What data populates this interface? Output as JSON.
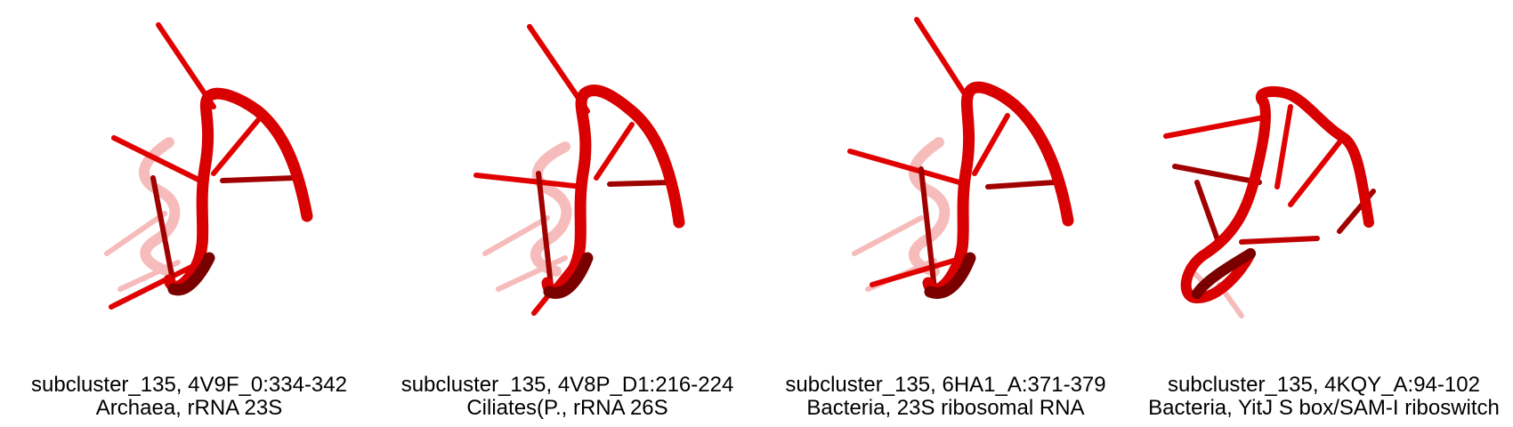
{
  "panels": [
    {
      "line1": "subcluster_135, 4V9F_0:334-342",
      "line2": "Archaea, rRNA 23S"
    },
    {
      "line1": "subcluster_135, 4V8P_D1:216-224",
      "line2": "Ciliates(P., rRNA 26S"
    },
    {
      "line1": "subcluster_135, 6HA1_A:371-379",
      "line2": "Bacteria, 23S ribosomal RNA"
    },
    {
      "line1": "subcluster_135, 4KQY_A:94-102",
      "line2": "Bacteria, YitJ S box/SAM-I riboswitch"
    }
  ],
  "colors": {
    "rna_red": "#e00000",
    "rna_dark": "#8a0000",
    "rna_faded": "#f2a0a0",
    "background": "#ffffff"
  }
}
